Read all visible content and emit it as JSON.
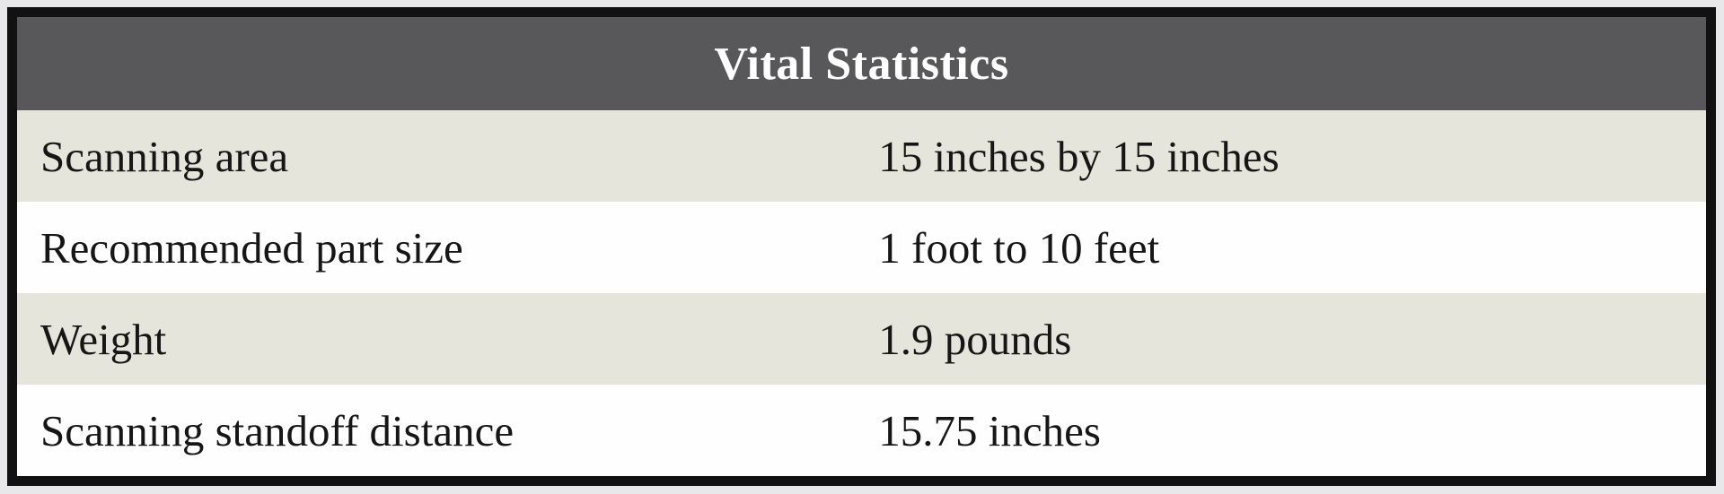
{
  "table": {
    "title": "Vital Statistics",
    "rows": [
      {
        "label": "Scanning area",
        "value": "15 inches by 15 inches"
      },
      {
        "label": "Recommended part size",
        "value": "1 foot to 10 feet"
      },
      {
        "label": "Weight",
        "value": "1.9 pounds"
      },
      {
        "label": "Scanning standoff distance",
        "value": "15.75 inches"
      }
    ],
    "colors": {
      "header_bg": "#58585a",
      "header_text": "#ffffff",
      "row_shaded": "#e6e5db",
      "row_white": "#fefefe",
      "border": "#111111",
      "page_bg": "#e8e8eb",
      "text": "#161616"
    }
  }
}
